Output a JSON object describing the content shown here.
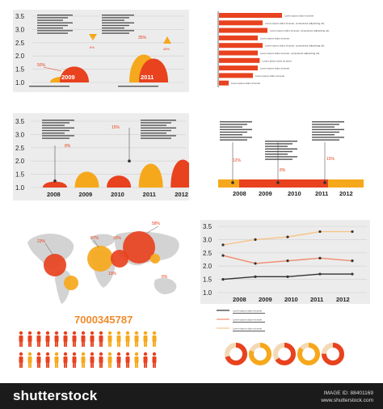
{
  "footer": {
    "brand": "shutterstock",
    "image_id": "IMAGE ID: 88401169",
    "site": "www.shutterstock.com"
  },
  "big_number": "7000345787",
  "colors": {
    "red": "#e8421f",
    "orange": "#f6a81c",
    "light_orange": "#f7c487",
    "dark": "#333333",
    "salmon": "#f08a6e"
  },
  "chart_data": [
    {
      "type": "area",
      "panel": "top-left",
      "ylim": [
        1.0,
        3.5
      ],
      "yticks": [
        "3.5",
        "3.0",
        "2.5",
        "2.0",
        "1.5",
        "1.0"
      ],
      "categories": [
        "2009",
        "2011"
      ],
      "series": [
        {
          "values": [
            1.3,
            2.4
          ]
        },
        {
          "values": [
            1.8,
            2.2
          ]
        }
      ],
      "annotations": [
        "50%",
        "35%"
      ],
      "indicators": [
        "down",
        "up"
      ],
      "indicator_labels": [
        "8%",
        "48%"
      ]
    },
    {
      "type": "bar",
      "panel": "top-right",
      "orientation": "horizontal",
      "values": [
        65,
        45,
        50,
        40,
        45,
        40,
        42,
        40,
        35,
        10
      ],
      "bar_labels": [
        "Lorem ipsum dolor sit amet",
        "Lorem ipsum dolor sit amet, consectetur adipisicing elit,",
        "Lorem ipsum dolor sit amet, consectetur adipisicing elit,",
        "Lorem ipsum dolor sit amet",
        "Lorem ipsum dolor sit amet, consectetur adipisicing elit,",
        "Lorem ipsum dolor sit amet, consectetur adipisicing elit,",
        "Lorem ipsum dolor sit amet",
        "Lorem ipsum dolor sit amet",
        "Lorem ipsum dolor sit amet",
        "Lorem ipsum dolor sit amet"
      ]
    },
    {
      "type": "area",
      "panel": "middle-left",
      "ylim": [
        1.0,
        3.5
      ],
      "yticks": [
        "3.5",
        "3.0",
        "2.5",
        "2.0",
        "1.5",
        "1.0"
      ],
      "categories": [
        "2008",
        "2009",
        "2010",
        "2011",
        "2012"
      ],
      "values": [
        1.3,
        1.8,
        1.6,
        2.2,
        2.4
      ],
      "annotations": [
        "8%",
        "15%"
      ]
    },
    {
      "type": "bar",
      "panel": "middle-right",
      "orientation": "timeline",
      "categories": [
        "2008",
        "2009",
        "2010",
        "2011",
        "2012"
      ],
      "annotations": [
        "12%",
        "8%",
        "15%"
      ]
    },
    {
      "type": "scatter",
      "panel": "bottom-left",
      "annotations": [
        "23%",
        "87%",
        "8%",
        "10%",
        "35%",
        "58%"
      ]
    },
    {
      "type": "line",
      "panel": "bottom-right",
      "ylim": [
        1.0,
        3.5
      ],
      "yticks": [
        "3.5",
        "3.0",
        "2.5",
        "2.0",
        "1.5",
        "1.0"
      ],
      "categories": [
        "2008",
        "2009",
        "2010",
        "2011",
        "2012"
      ],
      "series": [
        {
          "color": "#f7c487",
          "values": [
            2.8,
            3.0,
            3.1,
            3.3,
            3.3
          ]
        },
        {
          "color": "#f08a6e",
          "values": [
            2.4,
            2.1,
            2.2,
            2.3,
            2.2
          ]
        },
        {
          "color": "#333333",
          "values": [
            1.5,
            1.6,
            1.6,
            1.7,
            1.7
          ]
        }
      ],
      "legend": [
        "Lorem ipsum dolor sit amet",
        "Lorem ipsum dolor sit amet",
        "Lorem ipsum dolor sit amet"
      ]
    },
    {
      "type": "pie",
      "panel": "bottom-right-rings",
      "rings": [
        {
          "value": 0.7,
          "color": "#e8421f"
        },
        {
          "value": 0.8,
          "color": "#f6a81c"
        },
        {
          "value": 0.65,
          "color": "#e8421f"
        },
        {
          "value": 0.85,
          "color": "#f6a81c"
        },
        {
          "value": 0.75,
          "color": "#e8421f"
        }
      ]
    }
  ]
}
